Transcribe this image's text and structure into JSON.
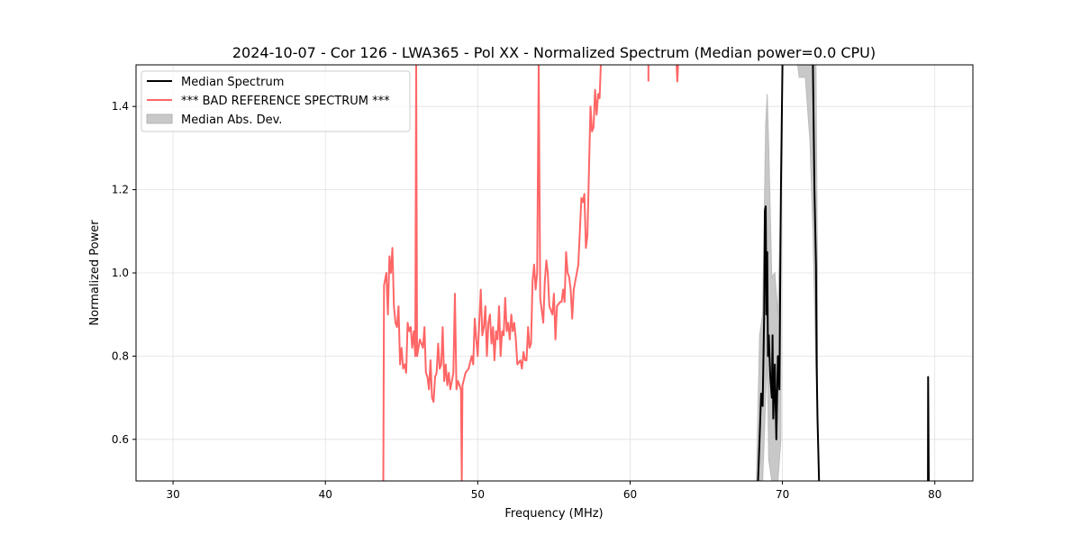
{
  "chart_data": {
    "type": "line",
    "title": "2024-10-07 - Cor 126 - LWA365 - Pol XX - Normalized Spectrum (Median power=0.0 CPU)",
    "xlabel": "Frequency (MHz)",
    "ylabel": "Normalized Power",
    "xlim": [
      27.57,
      82.5
    ],
    "ylim": [
      0.5,
      1.5
    ],
    "xticks": [
      30,
      40,
      50,
      60,
      70,
      80
    ],
    "yticks": [
      0.6,
      0.8,
      1.0,
      1.2,
      1.4
    ],
    "ytick_labels": [
      "0.6",
      "0.8",
      "1.0",
      "1.2",
      "1.4"
    ],
    "grid": true,
    "legend_position": "top-left",
    "legend": [
      "Median Spectrum",
      "*** BAD REFERENCE SPECTRUM ***",
      "Median Abs. Dev."
    ],
    "colors": {
      "median": "#000000",
      "reference": "#ff6666",
      "mad": "#c8c8c8"
    },
    "series": [
      {
        "name": "*** BAD REFERENCE SPECTRUM ***",
        "x": [
          43.8,
          43.85,
          44.0,
          44.1,
          44.2,
          44.3,
          44.4,
          44.5,
          44.6,
          44.7,
          44.8,
          44.9,
          45.0,
          45.1,
          45.2,
          45.3,
          45.4,
          45.5,
          45.6,
          45.7,
          45.8,
          45.9,
          45.96,
          46.02,
          46.2,
          46.4,
          46.5,
          46.6,
          46.7,
          46.8,
          46.9,
          47.0,
          47.1,
          47.2,
          47.3,
          47.4,
          47.5,
          47.6,
          47.7,
          47.8,
          47.9,
          48.0,
          48.1,
          48.2,
          48.3,
          48.4,
          48.5,
          48.6,
          48.7,
          48.8,
          48.9,
          48.95,
          49.0,
          49.2,
          49.4,
          49.6,
          49.7,
          49.8,
          49.9,
          50.0,
          50.1,
          50.2,
          50.3,
          50.4,
          50.5,
          50.6,
          50.7,
          50.8,
          50.9,
          51.0,
          51.1,
          51.2,
          51.3,
          51.4,
          51.5,
          51.6,
          51.7,
          51.8,
          51.9,
          52.0,
          52.1,
          52.2,
          52.3,
          52.4,
          52.5,
          52.6,
          52.8,
          52.9,
          53.0,
          53.1,
          53.2,
          53.3,
          53.4,
          53.5,
          53.6,
          53.7,
          53.8,
          53.9,
          54.0,
          54.1,
          54.3,
          54.4,
          54.5,
          54.6,
          54.7,
          54.9,
          55.0,
          55.1,
          55.2,
          55.4,
          55.5,
          55.6,
          55.7,
          55.8,
          55.9,
          56.0,
          56.1,
          56.2,
          56.3,
          56.5,
          56.6,
          56.8,
          56.9,
          57.0,
          57.1,
          57.2,
          57.4,
          57.5,
          57.6,
          57.7,
          57.8,
          57.9,
          58.0,
          58.1,
          null,
          61.2,
          61.2,
          null,
          63.05,
          63.1,
          63.15
        ],
        "y": [
          0.5,
          0.97,
          1.0,
          0.9,
          1.04,
          1.0,
          1.06,
          0.92,
          0.88,
          0.87,
          0.92,
          0.78,
          0.82,
          0.77,
          0.78,
          0.76,
          0.88,
          0.86,
          0.87,
          0.82,
          0.86,
          0.8,
          1.5,
          0.8,
          0.84,
          0.82,
          0.87,
          0.76,
          0.75,
          0.72,
          0.79,
          0.7,
          0.69,
          0.75,
          0.76,
          0.83,
          0.77,
          0.78,
          0.87,
          0.74,
          0.78,
          0.73,
          0.76,
          0.72,
          0.74,
          0.76,
          0.95,
          0.72,
          0.74,
          0.73,
          0.72,
          0.5,
          0.73,
          0.76,
          0.77,
          0.8,
          0.78,
          0.89,
          0.84,
          0.8,
          0.88,
          0.96,
          0.85,
          0.87,
          0.92,
          0.8,
          0.88,
          0.9,
          0.83,
          0.87,
          0.79,
          0.86,
          0.84,
          0.92,
          0.8,
          0.86,
          0.85,
          0.94,
          0.86,
          0.88,
          0.84,
          0.9,
          0.86,
          0.88,
          0.84,
          0.78,
          0.79,
          0.77,
          0.81,
          0.79,
          0.79,
          0.87,
          0.82,
          0.83,
          0.98,
          1.02,
          0.96,
          1.0,
          1.5,
          0.94,
          0.88,
          0.98,
          1.03,
          1.0,
          0.92,
          0.9,
          0.95,
          0.84,
          0.92,
          0.93,
          0.93,
          0.96,
          0.93,
          1.05,
          1.0,
          0.99,
          0.96,
          0.89,
          0.96,
          1.0,
          1.02,
          1.18,
          1.17,
          1.19,
          1.06,
          1.09,
          1.4,
          1.34,
          1.35,
          1.44,
          1.38,
          1.43,
          1.42,
          1.52,
          null,
          1.5,
          1.46,
          null,
          1.5,
          1.46,
          1.5
        ]
      },
      {
        "name": "Median Spectrum",
        "x": [
          68.4,
          68.5,
          68.6,
          68.7,
          68.8,
          68.85,
          68.9,
          68.95,
          69.0,
          69.05,
          69.1,
          69.2,
          69.3,
          69.35,
          69.4,
          69.5,
          69.6,
          69.7,
          69.8,
          69.9,
          70.0,
          null,
          72.0,
          72.1,
          72.2,
          72.25,
          72.3,
          72.4,
          null,
          79.55,
          79.56,
          79.6
        ],
        "y": [
          0.5,
          0.6,
          0.71,
          0.68,
          0.9,
          1.15,
          1.16,
          0.9,
          1.05,
          0.8,
          0.85,
          0.75,
          0.7,
          0.85,
          0.65,
          0.78,
          0.6,
          0.8,
          0.72,
          1.2,
          1.5,
          null,
          1.5,
          1.2,
          1.02,
          0.77,
          0.65,
          0.5,
          null,
          0.5,
          0.75,
          0.5
        ]
      }
    ],
    "bands": [
      {
        "name": "Median Abs. Dev.",
        "x": [
          68.3,
          68.5,
          68.7,
          68.9,
          69.0,
          69.1,
          69.3,
          69.5,
          69.7,
          69.9
        ],
        "upper": [
          0.52,
          0.85,
          0.9,
          1.36,
          1.43,
          1.3,
          0.99,
          1.0,
          0.9,
          1.2
        ],
        "lower": [
          0.5,
          0.5,
          0.5,
          0.7,
          0.8,
          0.55,
          0.5,
          0.5,
          0.5,
          0.6
        ]
      },
      {
        "name": "Median Abs. Dev.",
        "x": [
          71.0,
          71.1,
          71.5,
          71.8,
          72.0,
          72.2,
          72.3
        ],
        "upper": [
          1.5,
          1.5,
          1.5,
          1.5,
          1.5,
          1.5,
          1.0
        ],
        "lower": [
          1.5,
          1.47,
          1.47,
          1.32,
          1.1,
          0.78,
          0.7
        ]
      }
    ]
  }
}
